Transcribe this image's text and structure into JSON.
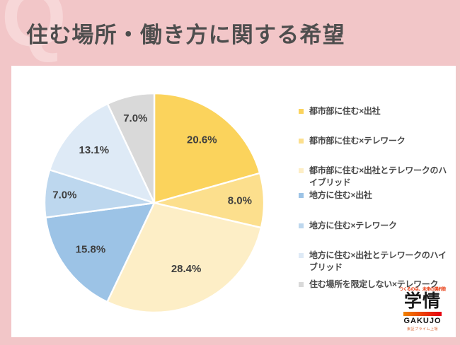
{
  "page": {
    "watermark": "Q",
    "title": "住む場所・働き方に関する希望",
    "background_color": "#F2C6C8",
    "title_color": "#4E4E4E",
    "watermark_color": "#F7D7D8",
    "panel_color": "#FFFFFF"
  },
  "chart_data": {
    "type": "pie",
    "title": "住む場所・働き方に関する希望",
    "direction": "clockwise",
    "start_angle": "12-oclock",
    "total": 99.9,
    "data_labels": "percent",
    "legend_position": "right",
    "label_color": "#3F3F3F",
    "legend_text_color": "#474747",
    "slice_border_color": "#FFFFFF",
    "slices": [
      {
        "label": "都市部に住む×出社",
        "value": 20.6,
        "display": "20.6%",
        "color": "#FBD35C"
      },
      {
        "label": "都市部に住む×テレワーク",
        "value": 8.0,
        "display": "8.0%",
        "color": "#FCDF8D"
      },
      {
        "label": "都市部に住む×出社とテレワークのハイブリッド",
        "value": 28.4,
        "display": "28.4%",
        "color": "#FDEEC6"
      },
      {
        "label": "地方に住む×出社",
        "value": 15.8,
        "display": "15.8%",
        "color": "#9CC3E6"
      },
      {
        "label": "地方に住む×テレワーク",
        "value": 7.0,
        "display": "7.0%",
        "color": "#BDD7EE"
      },
      {
        "label": "地方に住む×出社とテレワークのハイブリッド",
        "value": 13.1,
        "display": "13.1%",
        "color": "#DEEAF6"
      },
      {
        "label": "住む場所を限定しない×テレワーク",
        "value": 7.0,
        "display": "7.0%",
        "color": "#D9D9D9"
      }
    ]
  },
  "logo": {
    "tagline": "つくるのは、未来の選択肢",
    "name": "学情",
    "latin": "GAKUJO",
    "subtext": "東証プライム上場",
    "accent_orange": "#F08300",
    "accent_red": "#E60012"
  }
}
